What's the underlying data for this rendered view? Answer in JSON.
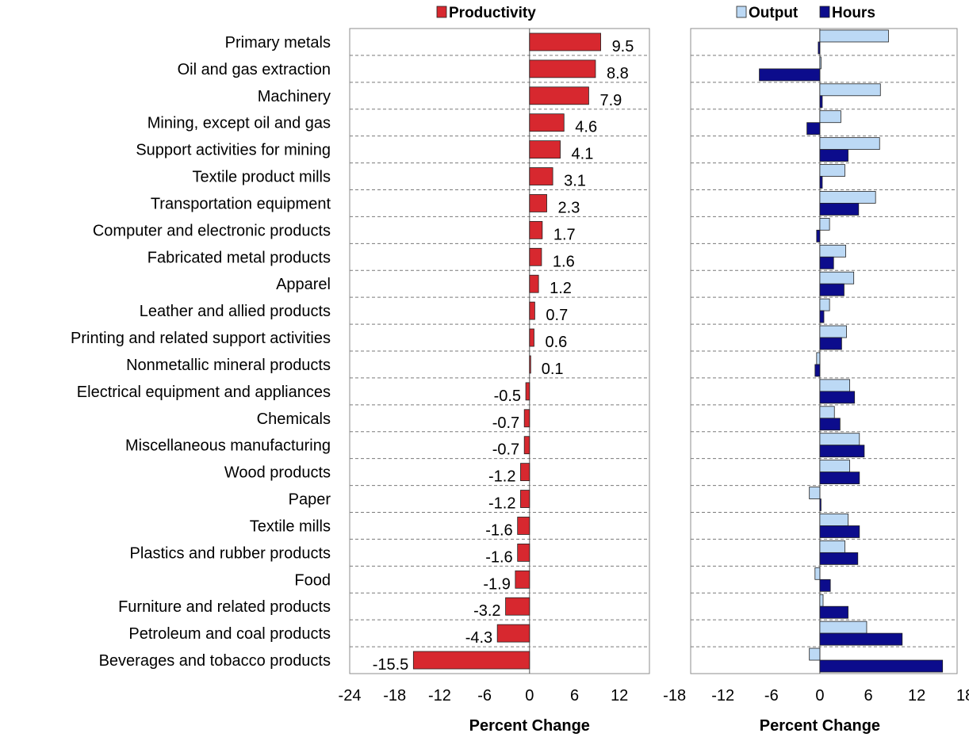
{
  "chart_data": [
    {
      "type": "bar",
      "orientation": "horizontal",
      "categories": [
        "Primary metals",
        "Oil and gas extraction",
        "Machinery",
        "Mining, except oil and gas",
        "Support activities for mining",
        "Textile product mills",
        "Transportation equipment",
        "Computer and electronic products",
        "Fabricated metal products",
        "Apparel",
        "Leather and allied products",
        "Printing and related support activities",
        "Nonmetallic mineral products",
        "Electrical equipment and appliances",
        "Chemicals",
        "Miscellaneous manufacturing",
        "Wood products",
        "Paper",
        "Textile mills",
        "Plastics and rubber products",
        "Food",
        "Furniture and related products",
        "Petroleum and coal products",
        "Beverages and tobacco products"
      ],
      "series": [
        {
          "name": "Productivity",
          "color": "#d7282f",
          "values": [
            9.5,
            8.8,
            7.9,
            4.6,
            4.1,
            3.1,
            2.3,
            1.7,
            1.6,
            1.2,
            0.7,
            0.6,
            0.1,
            -0.5,
            -0.7,
            -0.7,
            -1.2,
            -1.2,
            -1.6,
            -1.6,
            -1.9,
            -3.2,
            -4.3,
            -15.5
          ],
          "labels": [
            "9.5",
            "8.8",
            "7.9",
            "4.6",
            "4.1",
            "3.1",
            "2.3",
            "1.7",
            "1.6",
            "1.2",
            "0.7",
            "0.6",
            "0.1",
            "-0.5",
            "-0.7",
            "-0.7",
            "-1.2",
            "-1.2",
            "-1.6",
            "-1.6",
            "-1.9",
            "-3.2",
            "-4.3",
            "-15.5"
          ]
        }
      ],
      "xlim": [
        -24,
        16
      ],
      "xticks": [
        -24,
        -18,
        -12,
        -6,
        0,
        6,
        12
      ],
      "xlabel": "Percent Change",
      "grid": "horizontal dashed",
      "legend": "top"
    },
    {
      "type": "bar",
      "orientation": "horizontal",
      "series": [
        {
          "name": "Output",
          "color": "#bcd9f5",
          "values": [
            8.5,
            0,
            7.5,
            2.6,
            7.4,
            3.1,
            6.9,
            1.2,
            3.2,
            4.2,
            1.2,
            3.3,
            -0.4,
            3.7,
            1.8,
            4.9,
            3.7,
            -1.3,
            3.5,
            3.1,
            -0.6,
            0.4,
            5.8,
            -1.3
          ]
        },
        {
          "name": "Hours",
          "color": "#0c0c8c",
          "values": [
            -0.2,
            -7.5,
            0.3,
            -1.6,
            3.5,
            0.3,
            4.8,
            -0.4,
            1.7,
            3.0,
            0.5,
            2.7,
            -0.6,
            4.3,
            2.5,
            5.5,
            4.9,
            0.1,
            4.9,
            4.7,
            1.3,
            3.5,
            10.2,
            15.2
          ]
        }
      ],
      "xlim": [
        -16,
        17
      ],
      "xticks": [
        -18,
        -12,
        -6,
        0,
        6,
        12,
        18
      ],
      "xlabel": "Percent Change",
      "grid": "horizontal dashed",
      "legend": "top"
    }
  ]
}
